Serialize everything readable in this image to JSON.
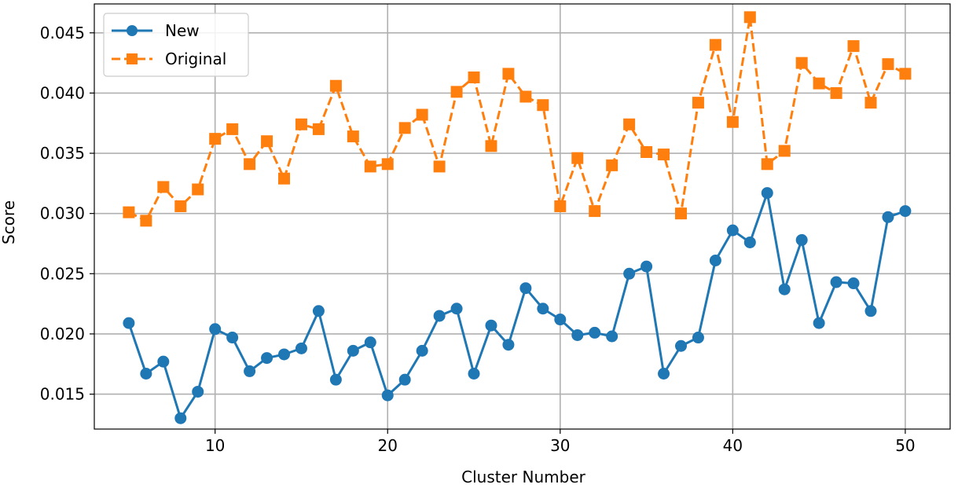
{
  "chart_data": {
    "type": "line",
    "title": "",
    "xlabel": "Cluster Number",
    "ylabel": "Score",
    "xlim": [
      3,
      52.6
    ],
    "ylim": [
      0.0121,
      0.0474
    ],
    "xticks": [
      10,
      20,
      30,
      40,
      50
    ],
    "xtick_labels": [
      "10",
      "20",
      "30",
      "40",
      "50"
    ],
    "yticks": [
      0.015,
      0.02,
      0.025,
      0.03,
      0.035,
      0.04,
      0.045
    ],
    "ytick_labels": [
      "0.015",
      "0.020",
      "0.025",
      "0.030",
      "0.035",
      "0.040",
      "0.045"
    ],
    "grid": true,
    "legend_position": "top-left",
    "x": [
      5,
      6,
      7,
      8,
      9,
      10,
      11,
      12,
      13,
      14,
      15,
      16,
      17,
      18,
      19,
      20,
      21,
      22,
      23,
      24,
      25,
      26,
      27,
      28,
      29,
      30,
      31,
      32,
      33,
      34,
      35,
      36,
      37,
      38,
      39,
      40,
      41,
      42,
      43,
      44,
      45,
      46,
      47,
      48,
      49,
      50
    ],
    "series": [
      {
        "name": "New",
        "color": "#1f77b4",
        "marker": "circle",
        "linestyle": "solid",
        "values": [
          0.0209,
          0.0167,
          0.0177,
          0.013,
          0.0152,
          0.0204,
          0.0197,
          0.0169,
          0.018,
          0.0183,
          0.0188,
          0.0219,
          0.0162,
          0.0186,
          0.0193,
          0.0149,
          0.0162,
          0.0186,
          0.0215,
          0.0221,
          0.0167,
          0.0207,
          0.0191,
          0.0238,
          0.0221,
          0.0212,
          0.0199,
          0.0201,
          0.0198,
          0.025,
          0.0256,
          0.0167,
          0.019,
          0.0197,
          0.0261,
          0.0286,
          0.0276,
          0.0317,
          0.0237,
          0.0278,
          0.0209,
          0.0243,
          0.0242,
          0.0219,
          0.0297,
          0.0302
        ]
      },
      {
        "name": "Original",
        "color": "#ff7f0e",
        "marker": "square",
        "linestyle": "dashed",
        "values": [
          0.0301,
          0.0294,
          0.0322,
          0.0306,
          0.032,
          0.0362,
          0.037,
          0.0341,
          0.036,
          0.0329,
          0.0374,
          0.037,
          0.0406,
          0.0364,
          0.0339,
          0.0341,
          0.0371,
          0.0382,
          0.0339,
          0.0401,
          0.0413,
          0.0356,
          0.0416,
          0.0397,
          0.039,
          0.0306,
          0.0346,
          0.0302,
          0.034,
          0.0374,
          0.0351,
          0.0349,
          0.03,
          0.0392,
          0.044,
          0.0376,
          0.0463,
          0.0341,
          0.0352,
          0.0425,
          0.0408,
          0.04,
          0.0439,
          0.0392,
          0.0424,
          0.0416
        ]
      }
    ]
  }
}
